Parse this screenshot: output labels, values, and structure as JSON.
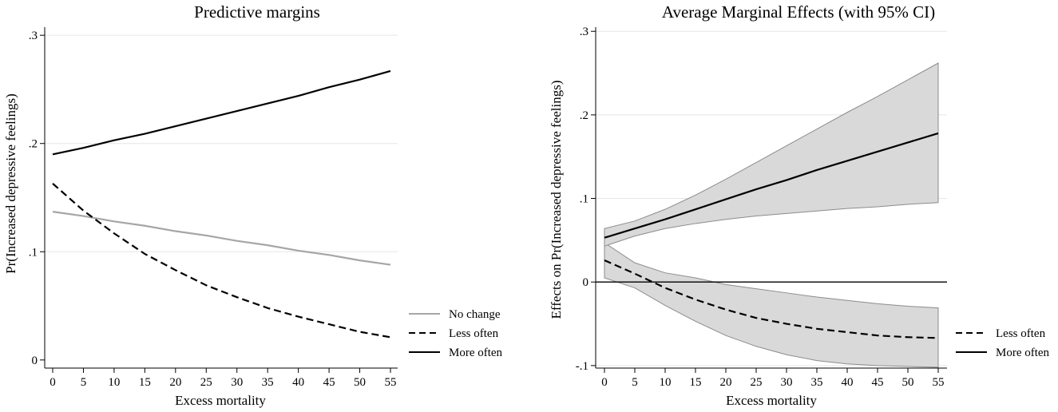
{
  "chart_data": [
    {
      "type": "line",
      "title": "Predictive margins",
      "xlabel": "Excess mortality",
      "ylabel": "Pr(Increased depressive feelings)",
      "xlim": [
        0,
        55
      ],
      "ylim": [
        -0.0075,
        0.3075
      ],
      "xticks": [
        0,
        5,
        10,
        15,
        20,
        25,
        30,
        35,
        40,
        45,
        50,
        55
      ],
      "xtick_labels": [
        "0",
        "5",
        "10",
        "15",
        "20",
        "25",
        "30",
        "35",
        "40",
        "45",
        "50",
        "55"
      ],
      "yticks": [
        0,
        0.1,
        0.2,
        0.3
      ],
      "ytick_labels": [
        "0",
        ".1",
        ".2",
        ".3"
      ],
      "x": [
        0,
        5,
        10,
        15,
        20,
        25,
        30,
        35,
        40,
        45,
        50,
        55
      ],
      "series": [
        {
          "name": "No change",
          "style": "solid",
          "color": "#a6a6a6",
          "values": [
            0.137,
            0.133,
            0.128,
            0.124,
            0.119,
            0.115,
            0.11,
            0.106,
            0.101,
            0.097,
            0.092,
            0.088
          ]
        },
        {
          "name": "Less often",
          "style": "dashed",
          "color": "#000000",
          "values": [
            0.163,
            0.138,
            0.117,
            0.098,
            0.083,
            0.069,
            0.058,
            0.048,
            0.04,
            0.033,
            0.026,
            0.021
          ]
        },
        {
          "name": "More often",
          "style": "solid",
          "color": "#000000",
          "values": [
            0.19,
            0.196,
            0.203,
            0.209,
            0.216,
            0.223,
            0.23,
            0.237,
            0.244,
            0.252,
            0.259,
            0.267
          ]
        }
      ],
      "legend": {
        "position": "right",
        "entries": [
          "No change",
          "Less often",
          "More often"
        ]
      }
    },
    {
      "type": "line",
      "title": "Average Marginal Effects (with 95% CI)",
      "xlabel": "Excess mortality",
      "ylabel": "Effects on Pr(Increased depressive feelings)",
      "xlim": [
        0,
        55
      ],
      "ylim": [
        -0.103,
        0.305
      ],
      "xticks": [
        0,
        5,
        10,
        15,
        20,
        25,
        30,
        35,
        40,
        45,
        50,
        55
      ],
      "xtick_labels": [
        "0",
        "5",
        "10",
        "15",
        "20",
        "25",
        "30",
        "35",
        "40",
        "45",
        "50",
        "55"
      ],
      "yticks": [
        -0.1,
        0,
        0.1,
        0.2,
        0.3
      ],
      "ytick_labels": [
        "-.1",
        "0",
        ".1",
        ".2",
        ".3"
      ],
      "reference_line": 0,
      "x": [
        0,
        5,
        10,
        15,
        20,
        25,
        30,
        35,
        40,
        45,
        50,
        55
      ],
      "series": [
        {
          "name": "Less often",
          "style": "dashed",
          "color": "#000000",
          "values": [
            0.026,
            0.01,
            -0.007,
            -0.021,
            -0.033,
            -0.043,
            -0.05,
            -0.056,
            -0.06,
            -0.064,
            -0.066,
            -0.067
          ],
          "ci_lower": [
            0.005,
            -0.007,
            -0.028,
            -0.047,
            -0.064,
            -0.077,
            -0.087,
            -0.094,
            -0.098,
            -0.1,
            -0.101,
            -0.102
          ],
          "ci_upper": [
            0.047,
            0.023,
            0.011,
            0.005,
            -0.003,
            -0.008,
            -0.013,
            -0.018,
            -0.022,
            -0.026,
            -0.029,
            -0.031
          ]
        },
        {
          "name": "More often",
          "style": "solid",
          "color": "#000000",
          "values": [
            0.053,
            0.064,
            0.075,
            0.087,
            0.099,
            0.111,
            0.122,
            0.134,
            0.145,
            0.156,
            0.167,
            0.178
          ],
          "ci_lower": [
            0.043,
            0.055,
            0.064,
            0.07,
            0.075,
            0.079,
            0.082,
            0.085,
            0.088,
            0.09,
            0.093,
            0.095
          ],
          "ci_upper": [
            0.064,
            0.073,
            0.087,
            0.104,
            0.123,
            0.143,
            0.163,
            0.183,
            0.203,
            0.222,
            0.242,
            0.262
          ]
        }
      ],
      "legend": {
        "position": "right",
        "entries": [
          "Less often",
          "More often"
        ]
      }
    }
  ]
}
